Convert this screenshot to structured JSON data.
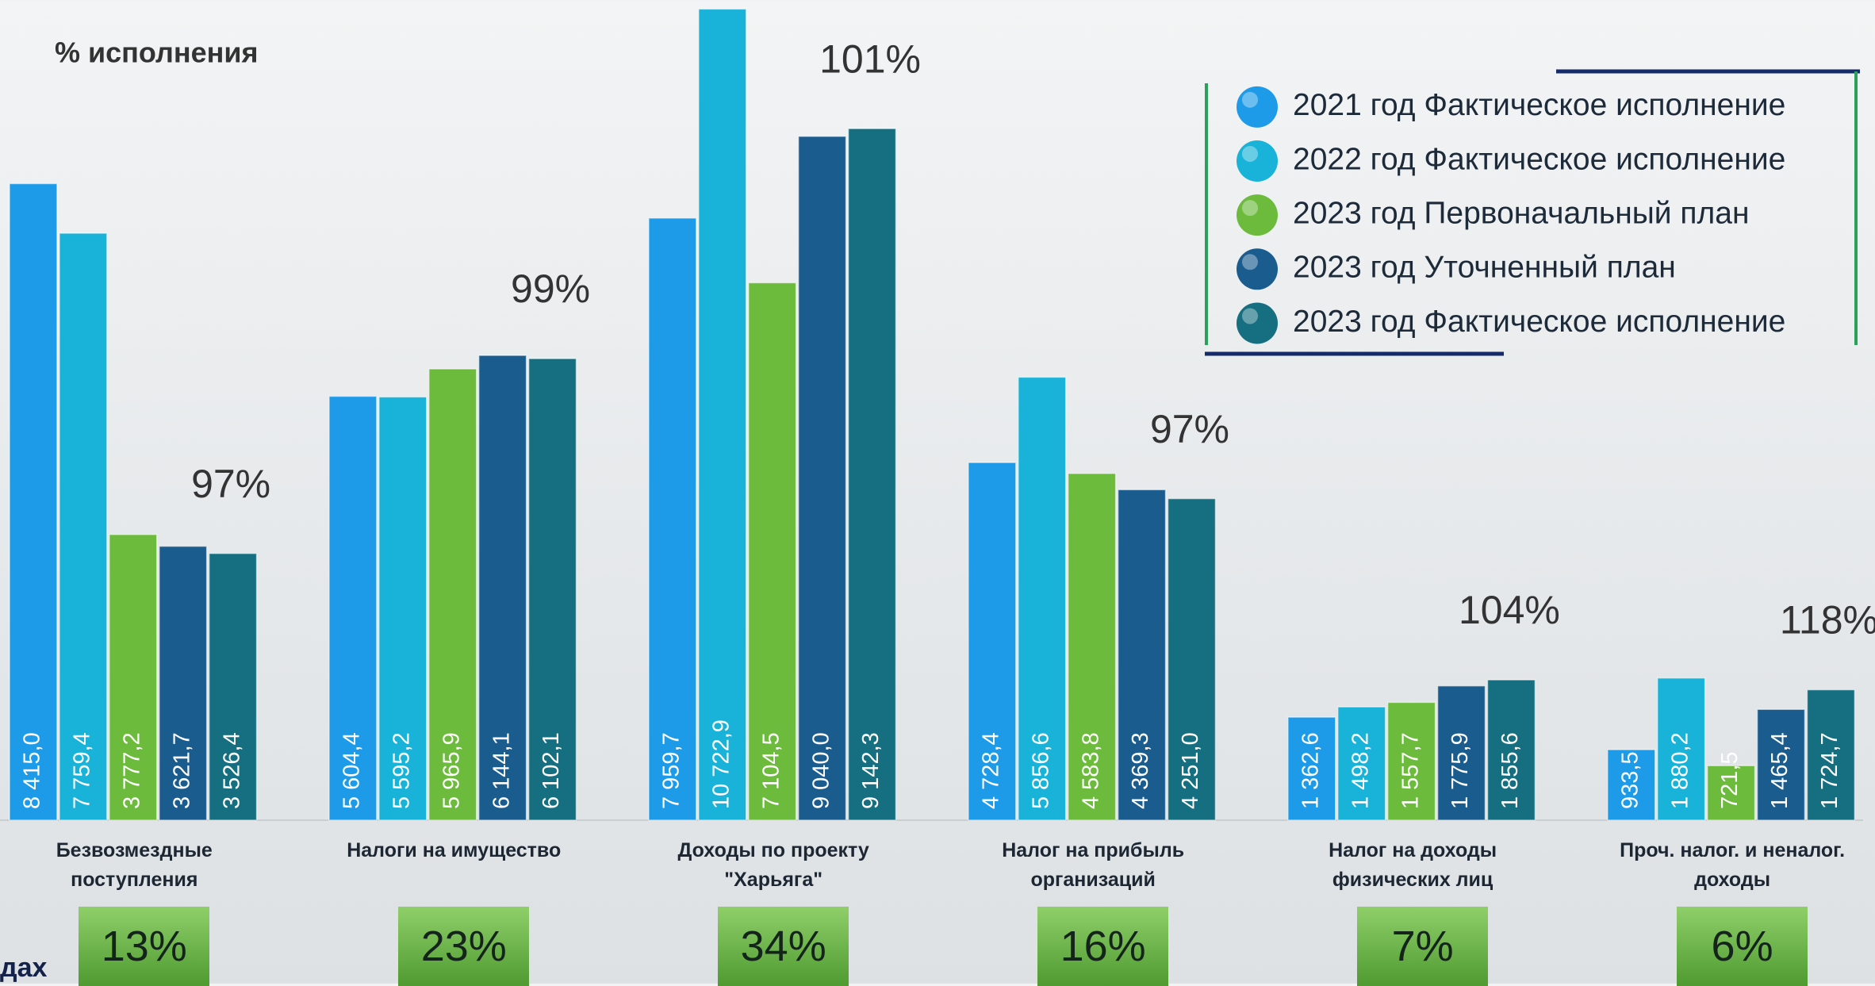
{
  "chart_data": {
    "type": "bar",
    "title": "% исполнения",
    "fragment": "дах",
    "categories": [
      "Безвозмездные поступления",
      "Налоги на имущество",
      "Доходы по проекту \"Харьяга\"",
      "Налог на прибыль организаций",
      "Налог на доходы физических лиц",
      "Проч. налог. и неналог. доходы"
    ],
    "series": [
      {
        "name": "2021 год Фактическое исполнение",
        "color": "#1e9be8",
        "values": [
          8415.0,
          5604.4,
          7959.7,
          4728.4,
          1362.6,
          933.5
        ],
        "value_labels": [
          "8 415,0",
          "5 604,4",
          "7 959,7",
          "4 728,4",
          "1 362,6",
          "933,5"
        ]
      },
      {
        "name": "2022 год Фактическое исполнение",
        "color": "#19b3d9",
        "values": [
          7759.4,
          5595.2,
          10722.9,
          5856.6,
          1498.2,
          1880.2
        ],
        "value_labels": [
          "7 759,4",
          "5 595,2",
          "10 722,9",
          "5 856,6",
          "1 498,2",
          "1 880,2"
        ]
      },
      {
        "name": "2023 год Первоначальный план",
        "color": "#6cbb3c",
        "values": [
          3777.2,
          5965.9,
          7104.5,
          4583.8,
          1557.7,
          721.5
        ],
        "value_labels": [
          "3 777,2",
          "5 965,9",
          "7 104,5",
          "4 583,8",
          "1 557,7",
          "721,5"
        ]
      },
      {
        "name": "2023 год Уточненный план",
        "color": "#1b5c8f",
        "values": [
          3621.7,
          6144.1,
          9040.0,
          4369.3,
          1775.9,
          1465.4
        ],
        "value_labels": [
          "3 621,7",
          "6 144,1",
          "9 040,0",
          "4 369,3",
          "1 775,9",
          "1 465,4"
        ]
      },
      {
        "name": "2023 год Фактическое исполнение",
        "color": "#156f80",
        "values": [
          3526.4,
          6102.1,
          9142.3,
          4251.0,
          1855.6,
          1724.7
        ],
        "value_labels": [
          "3 526,4",
          "6 102,1",
          "9 142,3",
          "4 251,0",
          "1 855,6",
          "1 724,7"
        ]
      }
    ],
    "execution": {
      "values": [
        97,
        99,
        101,
        97,
        104,
        118
      ],
      "value_labels": [
        "97%",
        "99%",
        "101%",
        "97%",
        "104%",
        "118%"
      ]
    },
    "shares": {
      "values": [
        13,
        23,
        34,
        16,
        7,
        6
      ],
      "value_labels": [
        "13%",
        "23%",
        "34%",
        "16%",
        "7%",
        "6%"
      ]
    },
    "ylim": [
      0,
      10800
    ]
  }
}
